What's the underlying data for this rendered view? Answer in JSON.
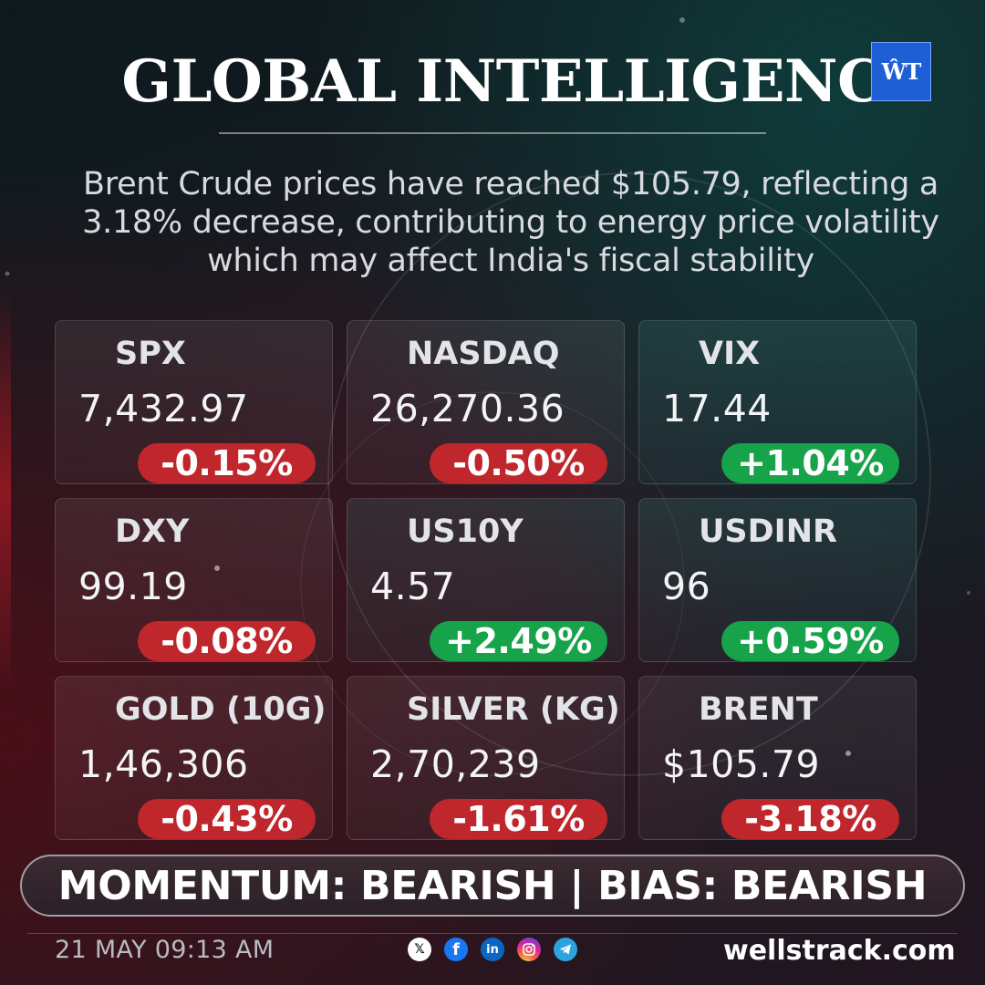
{
  "header": {
    "title": "GLOBAL INTELLIGENCE",
    "logo_text": "ŴT"
  },
  "headline": "Brent Crude prices have reached $105.79, reflecting a 3.18% decrease, contributing to energy price volatility which may affect India's fiscal stability",
  "colors": {
    "negative": "#c0272d",
    "positive": "#16a34a",
    "logo": "#1f5fd6"
  },
  "cards": [
    {
      "name": "SPX",
      "value": "7,432.97",
      "change": "-0.15%",
      "direction": "down"
    },
    {
      "name": "NASDAQ",
      "value": "26,270.36",
      "change": "-0.50%",
      "direction": "down"
    },
    {
      "name": "VIX",
      "value": "17.44",
      "change": "+1.04%",
      "direction": "up"
    },
    {
      "name": "DXY",
      "value": "99.19",
      "change": "-0.08%",
      "direction": "down"
    },
    {
      "name": "US10Y",
      "value": "4.57",
      "change": "+2.49%",
      "direction": "up"
    },
    {
      "name": "USDINR",
      "value": "96",
      "change": "+0.59%",
      "direction": "up"
    },
    {
      "name": "GOLD (10G)",
      "value": "1,46,306",
      "change": "-0.43%",
      "direction": "down"
    },
    {
      "name": "SILVER (KG)",
      "value": "2,70,239",
      "change": "-1.61%",
      "direction": "down"
    },
    {
      "name": "BRENT",
      "value": "$105.79",
      "change": "-3.18%",
      "direction": "down"
    }
  ],
  "banner": "MOMENTUM: BEARISH | BIAS: BEARISH",
  "footer": {
    "timestamp": "21 MAY 09:13 AM",
    "website": "wellstrack.com",
    "social_icons": [
      "x-icon",
      "facebook-icon",
      "linkedin-icon",
      "instagram-icon",
      "telegram-icon"
    ]
  }
}
